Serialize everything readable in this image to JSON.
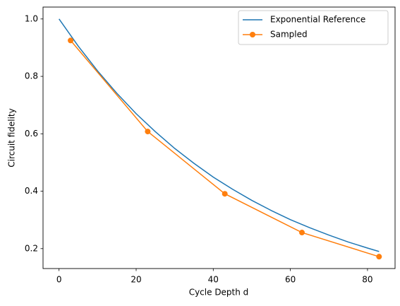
{
  "chart_data": {
    "type": "line",
    "xlabel": "Cycle Depth d",
    "ylabel": "Circuit fidelity",
    "xlim": [
      -4.15,
      87.15
    ],
    "ylim": [
      0.1306,
      1.0414
    ],
    "xticks": [
      0,
      20,
      40,
      60,
      80
    ],
    "yticks": [
      0.2,
      0.4,
      0.6,
      0.8,
      {
        "value": 1,
        "label": "1.0"
      }
    ],
    "legend": "upper right",
    "series": [
      {
        "name": "Exponential Reference",
        "color": "#1f77b4",
        "marker": false,
        "x": [
          0,
          5,
          10,
          15,
          20,
          25,
          30,
          35,
          40,
          45,
          50,
          55,
          60,
          65,
          70,
          75,
          80,
          83
        ],
        "values": [
          1.0,
          0.905,
          0.819,
          0.741,
          0.67,
          0.607,
          0.549,
          0.497,
          0.449,
          0.407,
          0.368,
          0.333,
          0.301,
          0.273,
          0.247,
          0.223,
          0.202,
          0.19
        ]
      },
      {
        "name": "Sampled",
        "color": "#ff7f0e",
        "marker": true,
        "x": [
          3,
          23,
          43,
          63,
          83
        ],
        "values": [
          0.925,
          0.608,
          0.391,
          0.256,
          0.172
        ]
      }
    ]
  }
}
